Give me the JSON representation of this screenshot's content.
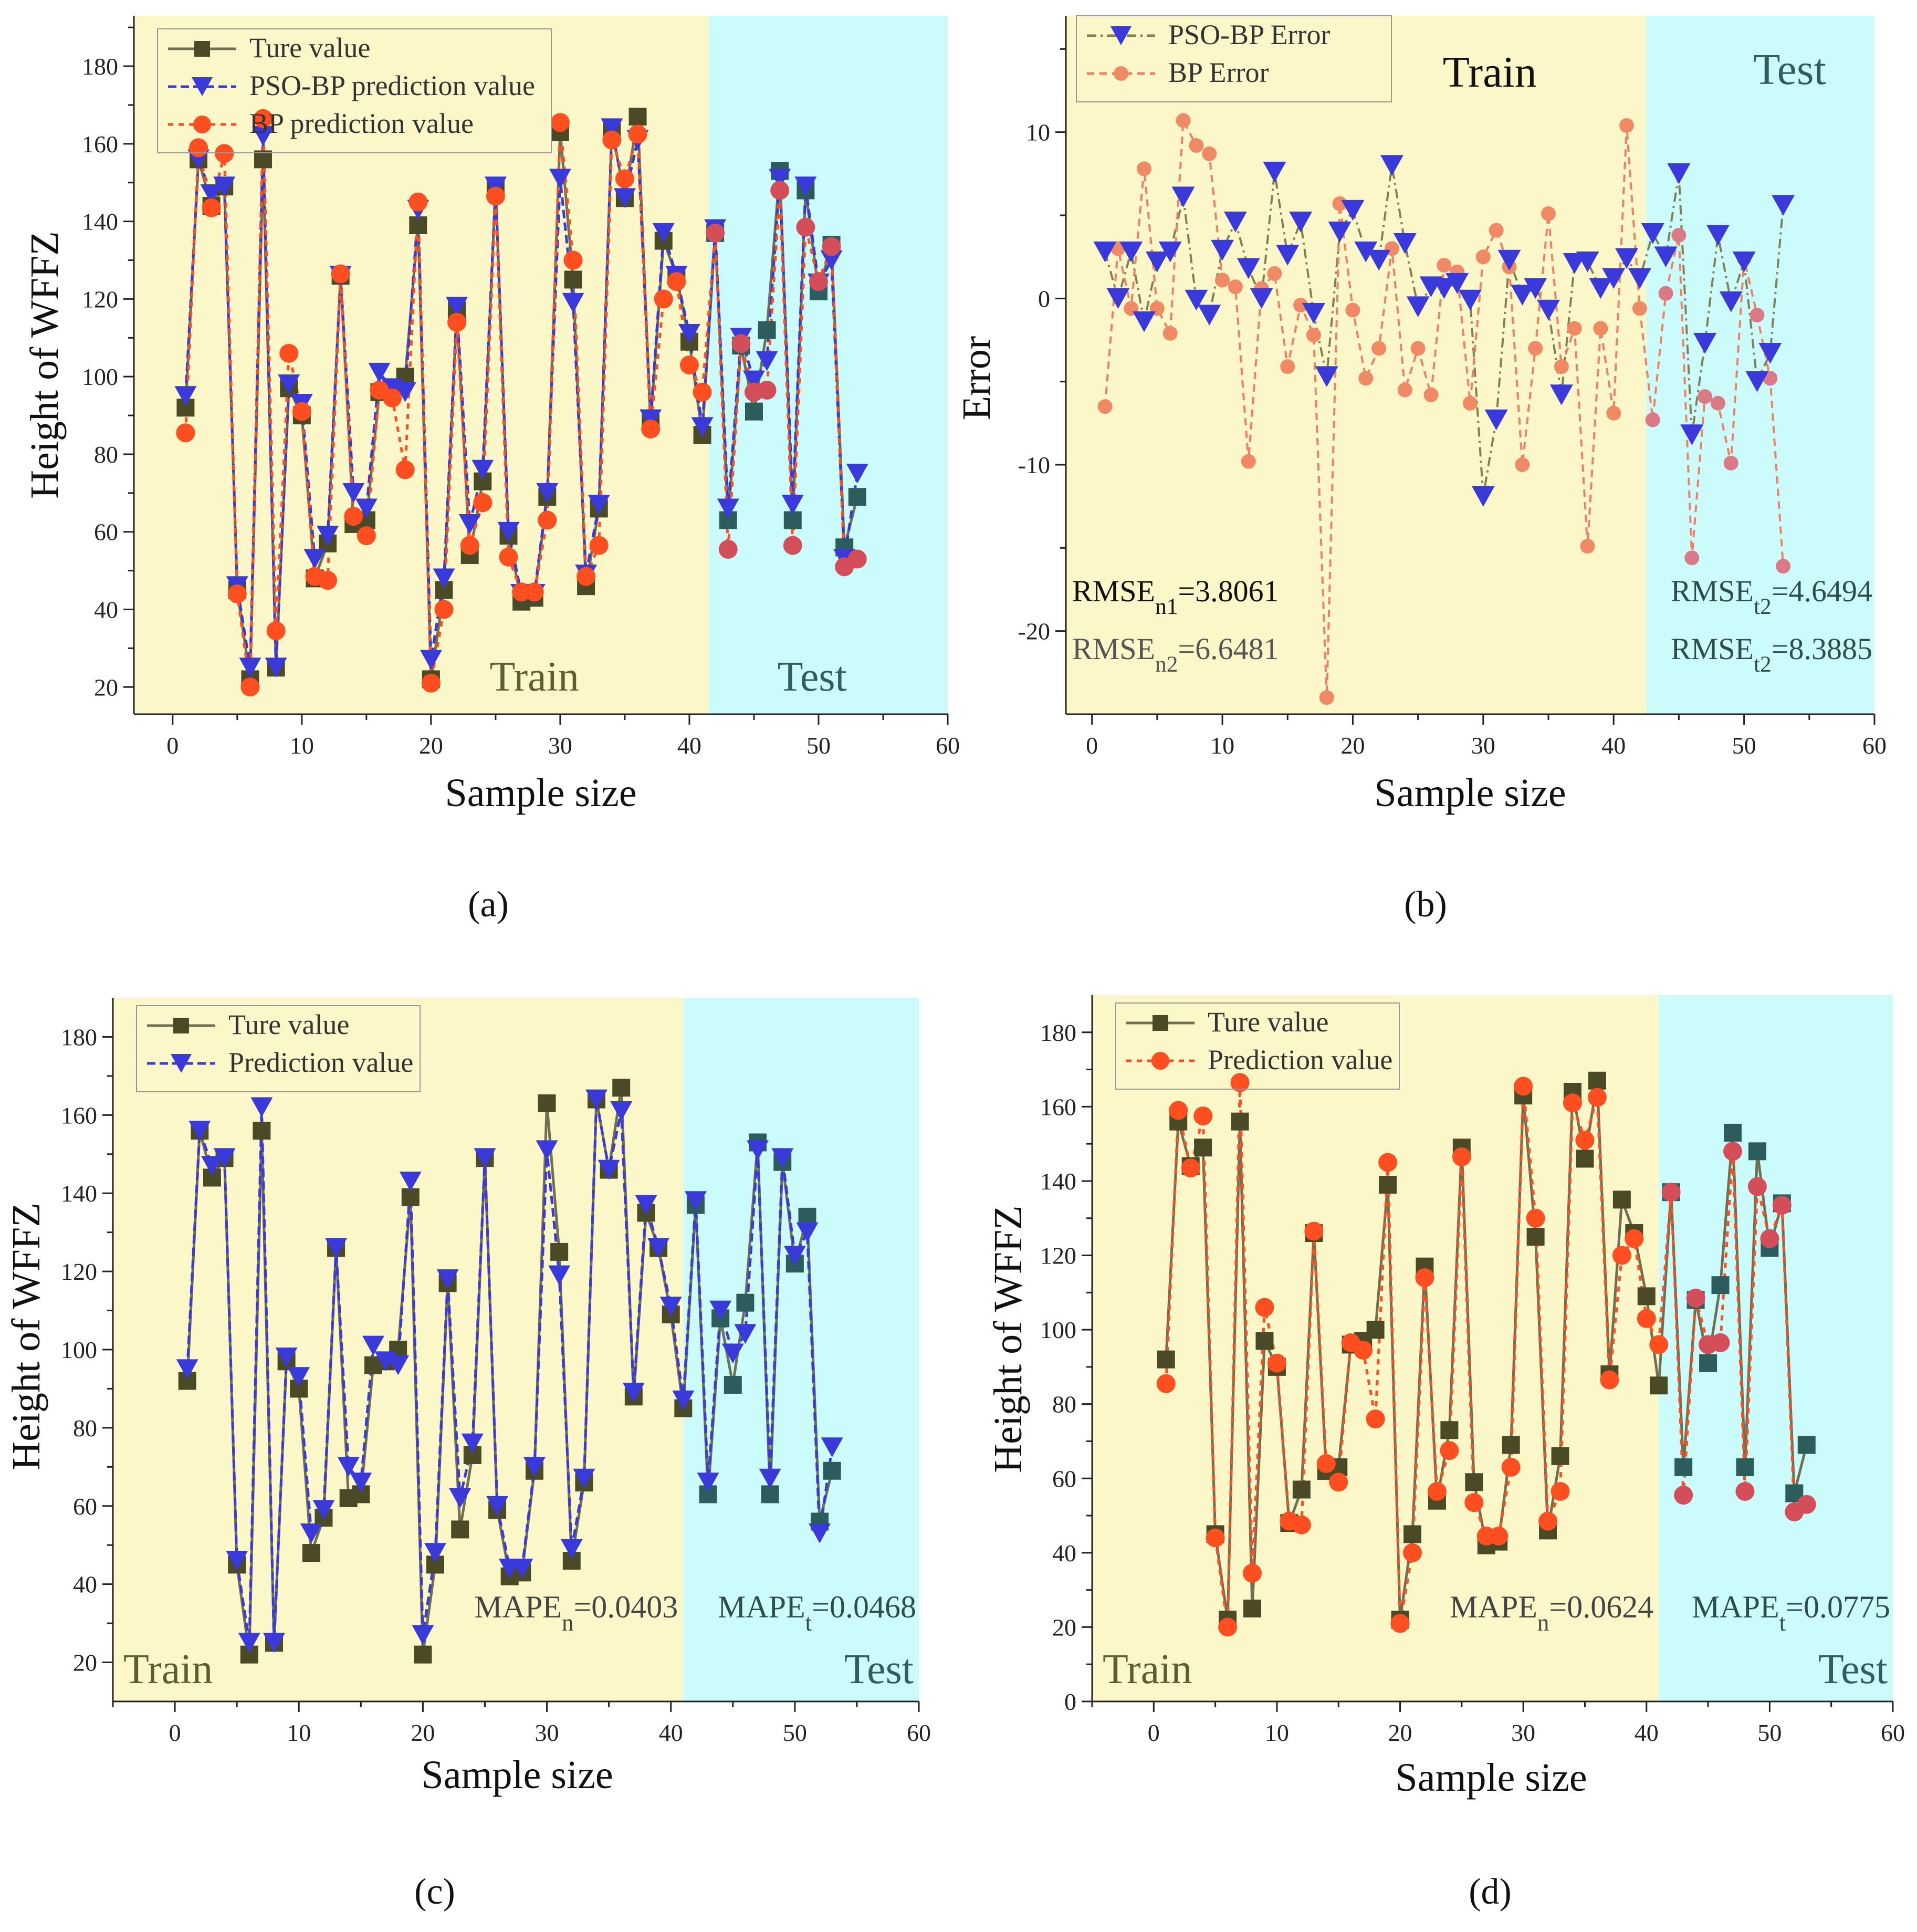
{
  "labels": {
    "train": "Train",
    "test": "Test",
    "sample_size": "Sample size"
  },
  "colors": {
    "train_bg": "#FCF7C9",
    "test_bg": "#CCFBFB",
    "true_value": "#4A4A26",
    "true_value_test": "#2D5C5C",
    "pso": "#3A3ADB",
    "bp": "#FF4E1F",
    "bp_test": "#D44E5A",
    "pso_err_line": "#808050",
    "bp_err_line": "#F08060",
    "bp_err_marker": "#F08A64",
    "bp_err_marker_test": "#D97A86"
  },
  "chart_data": [
    {
      "id": "a",
      "type": "line",
      "caption": "(a)",
      "ylabel": "Height of WFFZ",
      "xlabel": "Sample size",
      "xlim": [
        -3,
        60
      ],
      "ylim": [
        13,
        193
      ],
      "xticks": [
        0,
        10,
        20,
        30,
        40,
        50,
        60
      ],
      "yticks": [
        20,
        40,
        60,
        80,
        100,
        120,
        140,
        160,
        180
      ],
      "train_end": 41.5,
      "legend": [
        {
          "label": "Ture value",
          "series": "true"
        },
        {
          "label": "PSO-BP prediction value",
          "series": "pso"
        },
        {
          "label": "BP prediction value",
          "series": "bp"
        }
      ],
      "annotations": {
        "train": "Train",
        "test": "Test"
      },
      "series": [
        {
          "name": "true",
          "label": "Ture value",
          "values": [
            92,
            156,
            144,
            149,
            45,
            22,
            156,
            25,
            97,
            90,
            48,
            57,
            126,
            62,
            63,
            96,
            97,
            100,
            139,
            22,
            45,
            117,
            54,
            73,
            149,
            59,
            42,
            43,
            69,
            163,
            125,
            46,
            66,
            164,
            146,
            167,
            88,
            135,
            126,
            109,
            85,
            137,
            63,
            108,
            91,
            112,
            153,
            63,
            148,
            122,
            134,
            56,
            69
          ]
        },
        {
          "name": "pso",
          "label": "PSO-BP prediction value",
          "values": [
            95,
            156,
            147,
            149,
            46,
            25,
            162,
            25,
            98,
            93,
            53,
            59,
            126,
            70,
            66,
            101,
            97,
            96,
            143,
            27,
            48,
            118,
            62,
            76,
            149,
            60,
            44,
            44,
            70,
            151,
            119,
            49,
            67,
            164,
            146,
            161,
            89,
            137,
            126,
            111,
            87,
            138,
            66,
            110,
            99,
            104,
            151,
            67,
            149,
            124,
            130,
            53,
            75
          ]
        },
        {
          "name": "bp",
          "label": "BP prediction value",
          "values": [
            85.5,
            159,
            143.5,
            157.5,
            44,
            20,
            166.5,
            34.5,
            106,
            91,
            48.5,
            47.5,
            126.5,
            64,
            59,
            96.5,
            94.5,
            76,
            145,
            21,
            40,
            114,
            56.5,
            67.5,
            146.5,
            53.5,
            44.5,
            44.5,
            63,
            165.5,
            130,
            48.5,
            56.5,
            161,
            151,
            162.5,
            86.5,
            120,
            124.5,
            103,
            96,
            137,
            55.5,
            108.5,
            96,
            96.5,
            148,
            56.5,
            138.5,
            124.5,
            133.5,
            51,
            53
          ]
        }
      ]
    },
    {
      "id": "b",
      "type": "line",
      "caption": "(b)",
      "ylabel": "Error",
      "xlabel": "Sample size",
      "xlim": [
        -2,
        60
      ],
      "ylim": [
        -25,
        17
      ],
      "xticks": [
        0,
        10,
        20,
        30,
        40,
        50,
        60
      ],
      "yticks": [
        -20,
        -10,
        0,
        10
      ],
      "train_end": 42.5,
      "legend": [
        {
          "label": "PSO-BP Error",
          "series": "pso_err"
        },
        {
          "label": "BP Error",
          "series": "bp_err"
        }
      ],
      "annotations": {
        "train": "Train",
        "test": "Test"
      },
      "rmse_labels": [
        {
          "base": "RMSE",
          "sub": "n1",
          "value": "=3.8061"
        },
        {
          "base": "RMSE",
          "sub": "n2",
          "value": "=6.6481"
        },
        {
          "base": "RMSE",
          "sub": "t2",
          "value": "=4.6494"
        },
        {
          "base": "RMSE",
          "sub": "t2",
          "value": "=8.3885"
        }
      ],
      "series": [
        {
          "name": "pso_err",
          "label": "PSO-BP Error",
          "values": [
            2.8,
            0,
            2.8,
            -1.4,
            2.2,
            2.8,
            6.1,
            -0.1,
            -1,
            2.9,
            4.6,
            1.8,
            0,
            7.6,
            2.6,
            4.6,
            -0.9,
            -4.7,
            4,
            5.3,
            2.8,
            2.3,
            8,
            3.3,
            -0.5,
            0.7,
            0.6,
            0.9,
            -0.1,
            -11.9,
            -7.3,
            2.3,
            0.2,
            0.6,
            -0.7,
            -5.8,
            2.1,
            2.2,
            0.6,
            1.2,
            2.4,
            1.2,
            3.9,
            2.5,
            7.5,
            -8.2,
            -2.7,
            3.8,
            -0.2,
            2.2,
            -5,
            -3.3,
            5.6
          ]
        },
        {
          "name": "bp_err",
          "label": "BP Error",
          "values": [
            -6.5,
            3,
            -0.6,
            7.8,
            -0.6,
            -2.1,
            10.7,
            9.2,
            8.7,
            1.1,
            0.7,
            -9.8,
            0.6,
            1.5,
            -4.1,
            -0.4,
            -2.2,
            -24,
            5.7,
            -0.7,
            -4.8,
            -3,
            3,
            -5.5,
            -3,
            -5.8,
            2,
            1.6,
            -6.3,
            2.5,
            4.1,
            1.9,
            -10,
            -3,
            5.1,
            -4.1,
            -1.8,
            -14.9,
            -1.8,
            -6.9,
            10.4,
            -0.6,
            -7.3,
            0.3,
            3.8,
            -15.6,
            -5.9,
            -6.3,
            -9.9,
            2.4,
            -1,
            -4.8,
            -16.1
          ]
        }
      ]
    },
    {
      "id": "c",
      "type": "line",
      "caption": "(c)",
      "ylabel": "Height of WFFZ",
      "xlabel": "Sample size",
      "xlim": [
        -5,
        60
      ],
      "ylim": [
        10,
        190
      ],
      "xticks": [
        0,
        10,
        20,
        30,
        40,
        50,
        60
      ],
      "yticks": [
        20,
        40,
        60,
        80,
        100,
        120,
        140,
        160,
        180
      ],
      "train_end": 41,
      "legend": [
        {
          "label": "Ture value",
          "series": "true"
        },
        {
          "label": "Prediction value",
          "series": "pso"
        }
      ],
      "annotations": {
        "train": "Train",
        "test": "Test"
      },
      "mape_labels": [
        {
          "base": "MAPE",
          "sub": "n",
          "value": "=0.0403"
        },
        {
          "base": "MAPE",
          "sub": "t",
          "value": "=0.0468"
        }
      ],
      "series": [
        {
          "name": "true",
          "label": "Ture value",
          "values": [
            92,
            156,
            144,
            149,
            45,
            22,
            156,
            25,
            97,
            90,
            48,
            57,
            126,
            62,
            63,
            96,
            97,
            100,
            139,
            22,
            45,
            117,
            54,
            73,
            149,
            59,
            42,
            43,
            69,
            163,
            125,
            46,
            66,
            164,
            146,
            167,
            88,
            135,
            126,
            109,
            85,
            137,
            63,
            108,
            91,
            112,
            153,
            63,
            148,
            122,
            134,
            56,
            69
          ]
        },
        {
          "name": "pso",
          "label": "Prediction value",
          "values": [
            95,
            156,
            147,
            149,
            46,
            25,
            162,
            25,
            98,
            93,
            53,
            59,
            126,
            70,
            66,
            101,
            97,
            96,
            143,
            27,
            48,
            118,
            62,
            76,
            149,
            60,
            44,
            44,
            70,
            151,
            119,
            49,
            67,
            164,
            146,
            161,
            89,
            137,
            126,
            111,
            87,
            138,
            66,
            110,
            99,
            104,
            151,
            67,
            149,
            124,
            130,
            53,
            75
          ]
        }
      ]
    },
    {
      "id": "d",
      "type": "line",
      "caption": "(d)",
      "ylabel": "Height of WFFZ",
      "xlabel": "Sample size",
      "xlim": [
        -5,
        60
      ],
      "ylim": [
        0,
        190
      ],
      "xticks": [
        0,
        10,
        20,
        30,
        40,
        50,
        60
      ],
      "yticks": [
        0,
        20,
        40,
        60,
        80,
        100,
        120,
        140,
        160,
        180
      ],
      "train_end": 41,
      "legend": [
        {
          "label": "Ture value",
          "series": "true"
        },
        {
          "label": "Prediction value",
          "series": "bp"
        }
      ],
      "annotations": {
        "train": "Train",
        "test": "Test"
      },
      "mape_labels": [
        {
          "base": "MAPE",
          "sub": "n",
          "value": "=0.0624"
        },
        {
          "base": "MAPE",
          "sub": "t",
          "value": "=0.0775"
        }
      ],
      "series": [
        {
          "name": "true",
          "label": "Ture value",
          "values": [
            92,
            156,
            144,
            149,
            45,
            22,
            156,
            25,
            97,
            90,
            48,
            57,
            126,
            62,
            63,
            96,
            97,
            100,
            139,
            22,
            45,
            117,
            54,
            73,
            149,
            59,
            42,
            43,
            69,
            163,
            125,
            46,
            66,
            164,
            146,
            167,
            88,
            135,
            126,
            109,
            85,
            137,
            63,
            108,
            91,
            112,
            153,
            63,
            148,
            122,
            134,
            56,
            69
          ]
        },
        {
          "name": "bp",
          "label": "Prediction value",
          "values": [
            85.5,
            159,
            143.5,
            157.5,
            44,
            20,
            166.5,
            34.5,
            106,
            91,
            48.5,
            47.5,
            126.5,
            64,
            59,
            96.5,
            94.5,
            76,
            145,
            21,
            40,
            114,
            56.5,
            67.5,
            146.5,
            53.5,
            44.5,
            44.5,
            63,
            165.5,
            130,
            48.5,
            56.5,
            161,
            151,
            162.5,
            86.5,
            120,
            124.5,
            103,
            96,
            137,
            55.5,
            108.5,
            96,
            96.5,
            148,
            56.5,
            138.5,
            124.5,
            133.5,
            51,
            53
          ]
        }
      ]
    }
  ]
}
